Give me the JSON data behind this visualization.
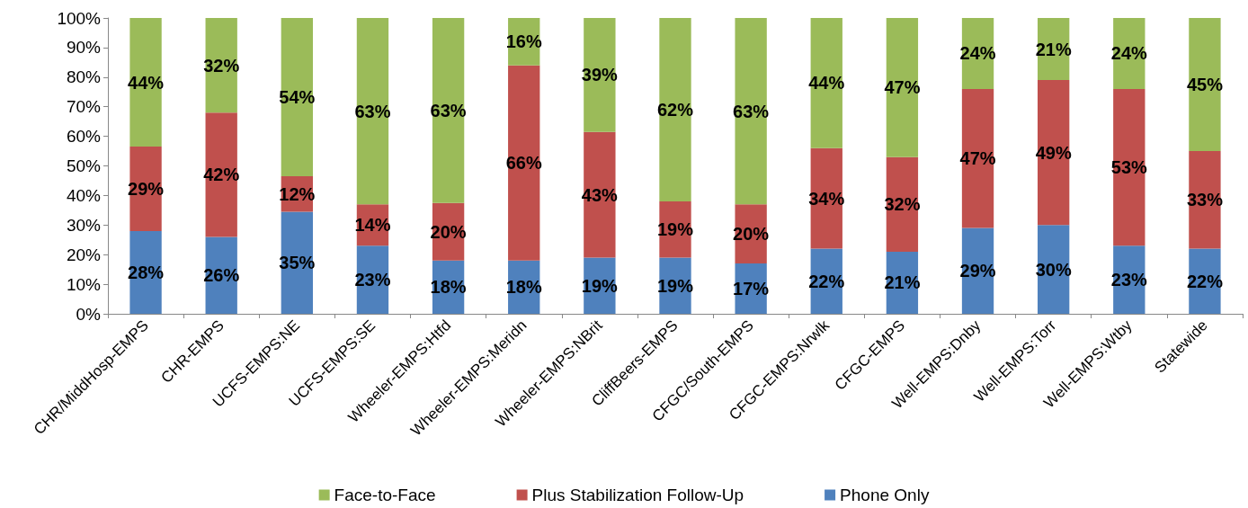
{
  "chart_data": {
    "type": "bar",
    "stacked": true,
    "grid": false,
    "legend": "bottom",
    "categories": [
      "CHR/MiddHosp-EMPS",
      "CHR-EMPS",
      "UCFS-EMPS:NE",
      "UCFS-EMPS:SE",
      "Wheeler-EMPS:Htfd",
      "Wheeler-EMPS:Meridn",
      "Wheeler-EMPS:NBrit",
      "CliffBeers-EMPS",
      "CFGC/South-EMPS",
      "CFGC-EMPS:Nrwlk",
      "CFGC-EMPS",
      "Well-EMPS:Dnby",
      "Well-EMPS:Torr",
      "Well-EMPS:Wtby",
      "Statewide"
    ],
    "ylim": [
      0,
      100
    ],
    "yticks": [
      {
        "value": 0,
        "label": "0%"
      },
      {
        "value": 10,
        "label": "10%"
      },
      {
        "value": 20,
        "label": "20%"
      },
      {
        "value": 30,
        "label": "30%"
      },
      {
        "value": 40,
        "label": "40%"
      },
      {
        "value": 50,
        "label": "50%"
      },
      {
        "value": 60,
        "label": "60%"
      },
      {
        "value": 70,
        "label": "70%"
      },
      {
        "value": 80,
        "label": "80%"
      },
      {
        "value": 90,
        "label": "90%"
      },
      {
        "value": 100,
        "label": "100%"
      }
    ],
    "series": [
      {
        "name": "Phone Only",
        "color": "#4f81bd",
        "values": [
          28,
          26,
          34.5,
          23,
          18,
          18,
          19,
          19,
          17,
          22,
          21,
          29,
          30,
          23,
          22
        ],
        "value_labels": [
          "28%",
          "26%",
          "35%",
          "23%",
          "18%",
          "18%",
          "19%",
          "19%",
          "17%",
          "22%",
          "21%",
          "29%",
          "30%",
          "23%",
          "22%"
        ]
      },
      {
        "name": "Plus Stabilization Follow-Up",
        "color": "#c0504d",
        "values": [
          28.5,
          42,
          12,
          14,
          19.5,
          66,
          42.5,
          19,
          20,
          34,
          32,
          47,
          49,
          53,
          33
        ],
        "value_labels": [
          "29%",
          "42%",
          "12%",
          "14%",
          "20%",
          "66%",
          "43%",
          "19%",
          "20%",
          "34%",
          "32%",
          "47%",
          "49%",
          "53%",
          "33%"
        ]
      },
      {
        "name": "Face-to-Face",
        "color": "#9bbb59",
        "values": [
          43.5,
          32,
          53.5,
          63,
          62.5,
          16,
          38.5,
          62,
          63,
          44,
          47,
          24,
          21,
          24,
          45
        ],
        "value_labels": [
          "44%",
          "32%",
          "54%",
          "63%",
          "63%",
          "16%",
          "39%",
          "62%",
          "63%",
          "44%",
          "47%",
          "24%",
          "21%",
          "24%",
          "45%"
        ]
      }
    ]
  }
}
